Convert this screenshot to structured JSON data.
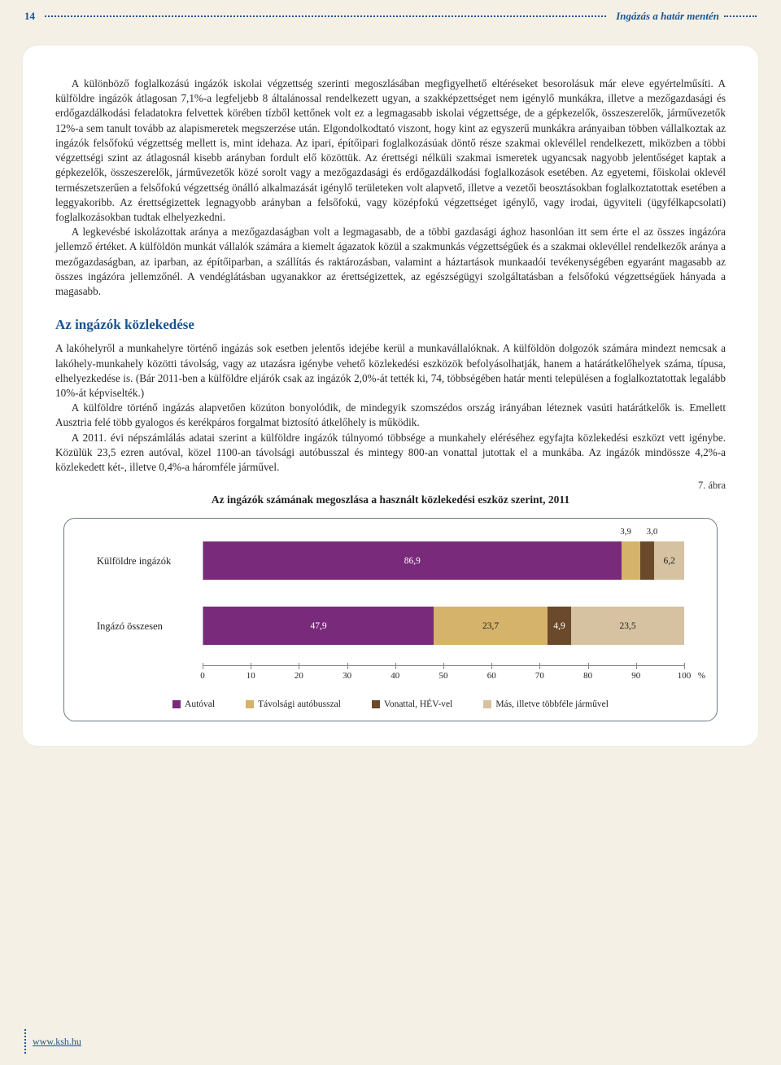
{
  "header": {
    "page_number": "14",
    "title": "Ingázás a határ mentén"
  },
  "paragraphs": {
    "p1": "A különböző foglalkozású ingázók iskolai végzettség szerinti megoszlásában megfigyelhető eltéréseket besorolásuk már eleve egyértelműsíti. A külföldre ingázók átlagosan 7,1%-a legfeljebb 8 általánossal rendelkezett ugyan, a szakképzettséget nem igénylő munkákra, illetve a mezőgazdasági és erdőgazdálkodási feladatokra felvettek körében tízből kettőnek volt ez a legmagasabb iskolai végzettsége, de a gépkezelők, összeszerelők, járművezetők 12%-a sem tanult tovább az alapismeretek megszerzése után. Elgondolkodtató viszont, hogy kint az egyszerű munkákra arányaiban többen vállalkoztak az ingázók felsőfokú végzettség mellett is, mint idehaza. Az ipari, építőipari foglalkozásúak döntő része szakmai oklevéllel rendelkezett, miközben a többi végzettségi szint az átlagosnál kisebb arányban fordult elő közöttük. Az érettségi nélküli szakmai ismeretek ugyancsak nagyobb jelentőséget kaptak a gépkezelők, összeszerelők, járművezetők közé sorolt vagy a mezőgazdasági és erdőgazdálkodási foglalkozások esetében. Az egyetemi, főiskolai oklevél természetszerűen a felsőfokú végzettség önálló alkalmazását igénylő területeken volt alapvető, illetve a vezetői beosztásokban foglalkoztatottak esetében a leggyakoribb. Az érettségizettek legnagyobb arányban a felsőfokú, vagy középfokú végzettséget igénylő, vagy irodai, ügyviteli (ügyfélkapcsolati) foglalkozásokban tudtak elhelyezkedni.",
    "p2": "A legkevésbé iskolázottak aránya a mezőgazdaságban volt a legmagasabb, de a többi gazdasági ághoz hasonlóan itt sem érte el az összes ingázóra jellemző értéket. A külföldön munkát vállalók számára a kiemelt ágazatok közül a szakmunkás végzettségűek és a szakmai oklevéllel rendelkezők aránya a mezőgazdaságban, az iparban, az építőiparban, a szállítás és raktározásban, valamint a háztartások munkaadói tevékenységében egyaránt magasabb az összes ingázóra jellemzőnél. A vendéglátásban ugyanakkor az érettségizettek, az egészségügyi szolgáltatásban a felsőfokú végzettségűek hányada a magasabb.",
    "p3": "A lakóhelyről a munkahelyre történő ingázás sok esetben jelentős idejébe kerül a munkavállalóknak. A külföldön dolgozók számára mindezt nemcsak a lakóhely-munkahely közötti távolság, vagy az utazásra igénybe vehető közlekedési eszközök befolyásolhatják, hanem a határátkelőhelyek száma, típusa, elhelyezkedése is. (Bár 2011-ben a külföldre eljárók csak az ingázók 2,0%-át tették ki, 74, többségében határ menti településen a foglalkoztatottak legalább 10%-át képviselték.)",
    "p4": "A külföldre történő ingázás alapvetően közúton bonyolódik, de mindegyik szomszédos ország irányában léteznek vasúti határátkelők is. Emellett Ausztria felé több gyalogos és kerékpáros forgalmat biztosító átkelőhely is működik.",
    "p5": "A 2011. évi népszámlálás adatai szerint a külföldre ingázók túlnyomó többsége a munkahely eléréséhez egyfajta közlekedési eszközt vett igénybe. Közülük 23,5 ezren autóval, közel 1100-an távolsági autóbusszal és mintegy 800-an vonattal jutottak el a munkába. Az ingázók mindössze 4,2%-a közlekedett két-, illetve 0,4%-a háromféle járművel."
  },
  "section_heading": "Az ingázók közlekedése",
  "figure": {
    "label": "7. ábra",
    "title": "Az ingázók számának megoszlása a használt közlekedési eszköz szerint, 2011",
    "type": "stacked-horizontal-bar",
    "background_color": "#ffffff",
    "border_color": "#6a7a8a",
    "xlim": [
      0,
      100
    ],
    "xtick_step": 10,
    "xticks": [
      "0",
      "10",
      "20",
      "30",
      "40",
      "50",
      "60",
      "70",
      "80",
      "90",
      "100"
    ],
    "axis_unit": "%",
    "categories": [
      {
        "label": "Külföldre ingázók",
        "segments": [
          {
            "value": 86.9,
            "display": "86,9",
            "color": "#7a2a7a"
          },
          {
            "value": 3.9,
            "display": "3,9",
            "color": "#d6b36a",
            "label_out": true,
            "label_out_offset": -6
          },
          {
            "value": 3.0,
            "display": "3,0",
            "color": "#6a4a2a",
            "label_out": true,
            "label_out_offset": 6
          },
          {
            "value": 6.2,
            "display": "6,2",
            "color": "#d6c2a0"
          }
        ]
      },
      {
        "label": "Ingázó összesen",
        "segments": [
          {
            "value": 47.9,
            "display": "47,9",
            "color": "#7a2a7a"
          },
          {
            "value": 23.7,
            "display": "23,7",
            "color": "#d6b36a"
          },
          {
            "value": 4.9,
            "display": "4,9",
            "color": "#6a4a2a",
            "text_color": "#fff"
          },
          {
            "value": 23.5,
            "display": "23,5",
            "color": "#d6c2a0"
          }
        ]
      }
    ],
    "legend": [
      {
        "label": "Autóval",
        "color": "#7a2a7a"
      },
      {
        "label": "Távolsági autóbusszal",
        "color": "#d6b36a"
      },
      {
        "label": "Vonattal, HÉV-vel",
        "color": "#6a4a2a"
      },
      {
        "label": "Más, illetve többféle járművel",
        "color": "#d6c2a0"
      }
    ]
  },
  "footer": {
    "url": "www.ksh.hu"
  }
}
